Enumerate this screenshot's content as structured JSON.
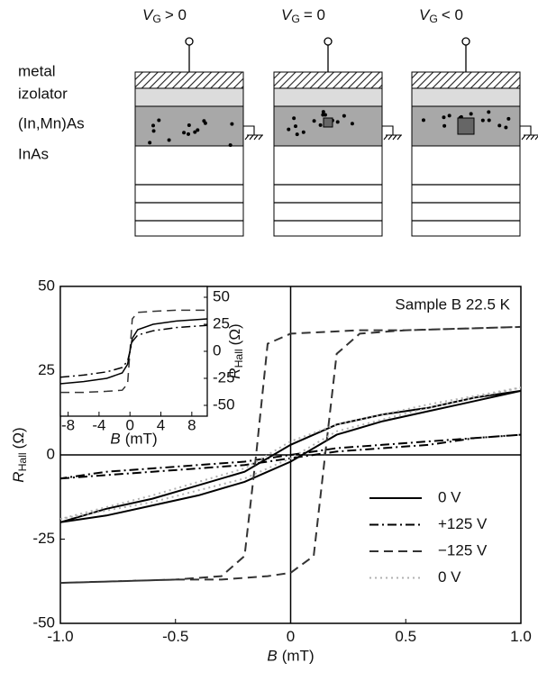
{
  "diagram": {
    "layers": [
      "metal",
      "izolator",
      "(In,Mn)As",
      "InAs"
    ],
    "gates": [
      {
        "symbol": "V",
        "subscript": "G",
        "relation": "> 0"
      },
      {
        "symbol": "V",
        "subscript": "G",
        "relation": "= 0"
      },
      {
        "symbol": "V",
        "subscript": "G",
        "relation": "< 0"
      }
    ]
  },
  "chart_data": [
    {
      "type": "line",
      "annotation": "Sample B  22.5 K",
      "x_label": {
        "symbol": "B",
        "unit": "(mT)"
      },
      "y_label": {
        "symbol": "R",
        "subscript": "Hall",
        "unit": "(Ω)"
      },
      "xlim": [
        -1,
        1
      ],
      "ylim": [
        -50,
        50
      ],
      "xticks": [
        {
          "value": -1,
          "label": "-1.0"
        },
        -0.5,
        0,
        0.5,
        {
          "value": 1,
          "label": "1.0"
        }
      ],
      "yticks": [
        -50,
        -25,
        0,
        25,
        50
      ],
      "legend": "lower right",
      "series": [
        {
          "name": "0 V",
          "color": "#000000",
          "dash": "solid",
          "x": [
            -1,
            -0.8,
            -0.6,
            -0.4,
            -0.2,
            -0.1,
            0,
            0.1,
            0.2,
            0.4,
            0.6,
            0.8,
            1,
            0.8,
            0.6,
            0.4,
            0.2,
            0.1,
            0,
            -0.1,
            -0.2,
            -0.4,
            -0.6,
            -0.8,
            -1
          ],
          "values": [
            -20,
            -18,
            -15,
            -12,
            -8,
            -5,
            -2,
            2,
            6,
            10,
            13,
            16,
            19,
            17,
            14,
            12,
            9,
            6,
            3,
            -1,
            -5,
            -9,
            -13,
            -16,
            -20
          ]
        },
        {
          "name": "+125 V",
          "color": "#000000",
          "dash": "dashdot",
          "x": [
            -1,
            -0.8,
            -0.6,
            -0.4,
            -0.2,
            -0.1,
            0,
            0.1,
            0.2,
            0.4,
            0.6,
            0.8,
            1,
            0.8,
            0.6,
            0.4,
            0.2,
            0.1,
            0,
            -0.1,
            -0.2,
            -0.4,
            -0.6,
            -0.8,
            -1
          ],
          "values": [
            -7,
            -6,
            -5,
            -4,
            -3,
            -2,
            -1,
            0,
            1,
            2,
            3,
            5,
            6,
            5,
            4,
            3,
            2,
            1,
            0,
            -1,
            -2,
            -3,
            -4,
            -5,
            -7
          ]
        },
        {
          "name": "−125 V",
          "color": "#333333",
          "dash": "dashed",
          "x": [
            -1,
            -0.5,
            -0.3,
            -0.1,
            0,
            0.1,
            0.15,
            0.2,
            0.3,
            0.5,
            1,
            0.5,
            0.3,
            0,
            -0.1,
            -0.15,
            -0.2,
            -0.3,
            -0.5,
            -1
          ],
          "values": [
            -38,
            -37,
            -37,
            -36,
            -35,
            -30,
            0,
            30,
            36,
            37,
            38,
            37,
            37,
            36,
            33,
            0,
            -30,
            -36,
            -37,
            -38
          ]
        },
        {
          "name": "0 V",
          "color": "#b0b0b0",
          "dash": "dotted",
          "x": [
            -1,
            -0.6,
            -0.2,
            0,
            0.2,
            0.6,
            1,
            0.6,
            0.2,
            0,
            -0.2,
            -0.6,
            -1
          ],
          "values": [
            -19,
            -14,
            -7,
            -1,
            7,
            14,
            20,
            15,
            9,
            4,
            -4,
            -12,
            -19
          ]
        }
      ]
    },
    {
      "type": "line",
      "x_label": {
        "symbol": "B",
        "unit": "(mT)"
      },
      "y_label": {
        "symbol": "R",
        "subscript": "Hall",
        "unit": "(Ω)"
      },
      "xlim": [
        -9,
        10
      ],
      "ylim": [
        -60,
        60
      ],
      "xticks": [
        -8,
        -4,
        0,
        4,
        8
      ],
      "yticks": [
        -50,
        -25,
        0,
        25,
        50
      ],
      "series": [
        {
          "color": "#333333",
          "dash": "dashed",
          "x": [
            -9,
            -6,
            -3,
            -1,
            -0.3,
            0,
            0.3,
            1,
            3,
            6,
            10
          ],
          "values": [
            -38,
            -38,
            -37,
            -36,
            -30,
            0,
            30,
            36,
            37,
            38,
            38
          ]
        },
        {
          "color": "#000000",
          "dash": "solid",
          "x": [
            -9,
            -6,
            -3,
            -1,
            -0.3,
            0,
            0.3,
            1,
            3,
            6,
            10
          ],
          "values": [
            -30,
            -28,
            -25,
            -20,
            -12,
            0,
            12,
            20,
            25,
            28,
            30
          ]
        },
        {
          "color": "#000000",
          "dash": "dashdot",
          "x": [
            -9,
            -6,
            -3,
            -1,
            -0.3,
            0,
            0.3,
            1,
            3,
            6,
            10
          ],
          "values": [
            -24,
            -22,
            -19,
            -15,
            -9,
            0,
            9,
            15,
            19,
            22,
            24
          ]
        }
      ]
    }
  ]
}
